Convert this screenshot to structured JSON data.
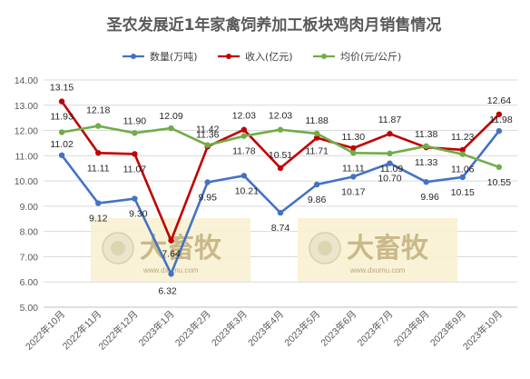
{
  "chart_data": {
    "type": "line",
    "title": "圣农发展近1年家禽饲养加工板块鸡肉月销售情况",
    "categories": [
      "2022年10月",
      "2022年11月",
      "2022年12月",
      "2023年1月",
      "2023年2月",
      "2023年3月",
      "2023年4月",
      "2023年5月",
      "2023年6月",
      "2023年7月",
      "2023年8月",
      "2023年9月",
      "2023年10月"
    ],
    "series": [
      {
        "name": "数量(万吨)",
        "color": "#4472c4",
        "values": [
          11.02,
          9.12,
          9.3,
          6.32,
          9.95,
          10.21,
          8.74,
          9.86,
          10.17,
          10.7,
          9.96,
          10.15,
          11.98
        ]
      },
      {
        "name": "收入(亿元)",
        "color": "#c00000",
        "values": [
          13.15,
          11.11,
          11.07,
          7.64,
          11.36,
          12.03,
          10.51,
          11.71,
          11.3,
          11.87,
          11.33,
          11.23,
          12.64
        ]
      },
      {
        "name": "均价(元/公斤)",
        "color": "#70ad47",
        "values": [
          11.93,
          12.18,
          11.9,
          12.09,
          11.42,
          11.78,
          12.03,
          11.88,
          11.11,
          11.09,
          11.38,
          11.06,
          10.55
        ]
      }
    ],
    "ylim": [
      5.0,
      14.0
    ],
    "yticks": [
      "5.00",
      "6.00",
      "7.00",
      "8.00",
      "9.00",
      "10.00",
      "11.00",
      "12.00",
      "13.00",
      "14.00"
    ],
    "grid": true,
    "legend_position": "top"
  },
  "watermark": {
    "text": "大畜牧",
    "url": "www.dxumu.com"
  }
}
